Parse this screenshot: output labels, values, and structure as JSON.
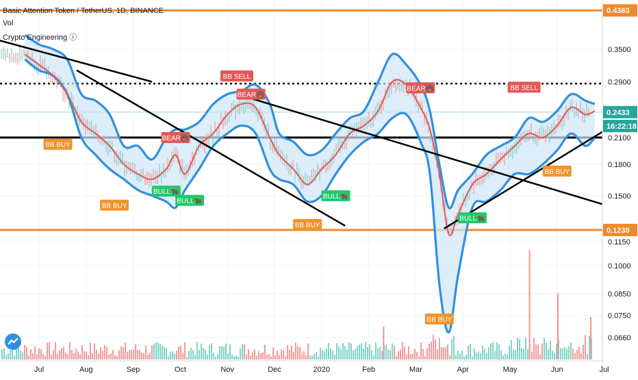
{
  "header": {
    "symbol_line": "Basic Attention Token / TetherUS, 1D, BINANCE",
    "volume_label": "Vol",
    "indicator_label": "Crypto Engineering ⓘ"
  },
  "colors": {
    "background": "#ffffff",
    "band_line": "#2f8fe0",
    "band_fill": "#cfe6f7",
    "mid_line": "#e05a5a",
    "level_orange": "#f0892b",
    "level_black": "#000000",
    "current_price": "#26a69a",
    "sell_badge": "#e35757",
    "buy_badge": "#f0932b",
    "bull_badge": "#22c96b",
    "vol_up": "#7fd3c8",
    "vol_down": "#f29a9a"
  },
  "price_axis": {
    "scale": "log",
    "ticks": [
      "0.3500",
      "0.2900",
      "0.2100",
      "0.1800",
      "0.1500",
      "0.1150",
      "0.1000",
      "0.0850",
      "0.0750",
      "0.0660"
    ],
    "tick_values": [
      0.35,
      0.29,
      0.21,
      0.18,
      0.15,
      0.115,
      0.1,
      0.085,
      0.075,
      0.066
    ],
    "tags": [
      {
        "label": "0.4383",
        "value": 0.4383,
        "color": "#f0892b"
      },
      {
        "label": "0.2433",
        "value": 0.2433,
        "color": "#26a69a"
      },
      {
        "label": "16:22:18",
        "value": 0.2245,
        "color": "#26a69a"
      },
      {
        "label": "0.1230",
        "value": 0.123,
        "color": "#f0892b"
      }
    ]
  },
  "time_axis": {
    "labels": [
      "Jul",
      "Aug",
      "Sep",
      "Oct",
      "Nov",
      "Dec",
      "2020",
      "Feb",
      "Mar",
      "Apr",
      "May",
      "Jun",
      "Jul"
    ],
    "months": [
      0,
      1,
      2,
      3,
      4,
      5,
      6,
      7,
      8,
      9,
      10,
      11,
      12
    ]
  },
  "chart_data": {
    "type": "line",
    "title": "Basic Attention Token / TetherUS, 1D, BINANCE",
    "x_unit": "month index (0 = Jul 2019)",
    "y_scale": "log",
    "ylim": [
      0.062,
      0.44
    ],
    "series": [
      {
        "name": "Price",
        "x": [
          -0.3,
          0.0,
          0.3,
          0.6,
          0.9,
          1.2,
          1.5,
          1.8,
          2.1,
          2.4,
          2.7,
          2.9,
          3.1,
          3.4,
          3.7,
          4.0,
          4.3,
          4.6,
          4.9,
          5.1,
          5.4,
          5.7,
          6.0,
          6.3,
          6.6,
          6.9,
          7.2,
          7.5,
          7.8,
          8.1,
          8.3,
          8.5,
          8.7,
          8.9,
          9.2,
          9.5,
          9.8,
          10.1,
          10.4,
          10.7,
          11.0,
          11.3,
          11.6,
          11.8
        ],
        "values": [
          0.34,
          0.32,
          0.3,
          0.27,
          0.23,
          0.215,
          0.2,
          0.18,
          0.17,
          0.165,
          0.175,
          0.19,
          0.17,
          0.2,
          0.215,
          0.24,
          0.255,
          0.25,
          0.21,
          0.19,
          0.175,
          0.16,
          0.175,
          0.19,
          0.215,
          0.225,
          0.245,
          0.29,
          0.285,
          0.25,
          0.22,
          0.17,
          0.12,
          0.135,
          0.16,
          0.17,
          0.185,
          0.2,
          0.215,
          0.21,
          0.225,
          0.25,
          0.24,
          0.245
        ]
      },
      {
        "name": "Upper Band",
        "x": [
          -0.3,
          0.0,
          0.3,
          0.6,
          0.9,
          1.2,
          1.5,
          1.8,
          2.1,
          2.4,
          2.7,
          2.9,
          3.1,
          3.4,
          3.7,
          4.0,
          4.3,
          4.6,
          4.9,
          5.1,
          5.4,
          5.7,
          6.0,
          6.3,
          6.6,
          6.9,
          7.2,
          7.5,
          7.8,
          8.1,
          8.3,
          8.5,
          8.7,
          8.9,
          9.2,
          9.5,
          9.8,
          10.1,
          10.4,
          10.7,
          11.0,
          11.3,
          11.6,
          11.8
        ],
        "values": [
          0.38,
          0.36,
          0.35,
          0.33,
          0.27,
          0.26,
          0.24,
          0.2,
          0.2,
          0.185,
          0.21,
          0.22,
          0.22,
          0.23,
          0.255,
          0.27,
          0.275,
          0.285,
          0.255,
          0.215,
          0.205,
          0.19,
          0.195,
          0.215,
          0.235,
          0.245,
          0.29,
          0.34,
          0.32,
          0.285,
          0.245,
          0.18,
          0.14,
          0.155,
          0.17,
          0.19,
          0.2,
          0.21,
          0.235,
          0.23,
          0.245,
          0.27,
          0.26,
          0.255
        ]
      },
      {
        "name": "Lower Band",
        "x": [
          -0.3,
          0.0,
          0.3,
          0.6,
          0.9,
          1.2,
          1.5,
          1.8,
          2.1,
          2.4,
          2.7,
          2.9,
          3.1,
          3.4,
          3.7,
          4.0,
          4.3,
          4.6,
          4.9,
          5.1,
          5.4,
          5.7,
          6.0,
          6.3,
          6.6,
          6.9,
          7.2,
          7.5,
          7.8,
          8.1,
          8.3,
          8.5,
          8.7,
          8.9,
          9.2,
          9.5,
          9.8,
          10.1,
          10.4,
          10.7,
          11.0,
          11.3,
          11.6,
          11.8
        ],
        "values": [
          0.33,
          0.31,
          0.3,
          0.27,
          0.21,
          0.19,
          0.175,
          0.165,
          0.155,
          0.15,
          0.145,
          0.14,
          0.155,
          0.175,
          0.2,
          0.215,
          0.225,
          0.215,
          0.175,
          0.165,
          0.16,
          0.145,
          0.15,
          0.17,
          0.19,
          0.205,
          0.215,
          0.235,
          0.24,
          0.205,
          0.17,
          0.09,
          0.068,
          0.095,
          0.14,
          0.145,
          0.155,
          0.17,
          0.17,
          0.18,
          0.195,
          0.215,
          0.2,
          0.21
        ]
      }
    ],
    "levels": [
      {
        "value": 0.4383,
        "label": "0.4383",
        "color": "#f0892b",
        "style": "solid"
      },
      {
        "value": 0.287,
        "color": "#000000",
        "style": "dotted"
      },
      {
        "value": 0.21,
        "color": "#000000",
        "style": "solid"
      },
      {
        "value": 0.123,
        "label": "0.1230",
        "color": "#f0892b",
        "style": "solid"
      }
    ],
    "trendlines": [
      {
        "x": [
          -0.9,
          2.4
        ],
        "y": [
          0.37,
          0.29
        ],
        "color": "#000000"
      },
      {
        "x": [
          0.8,
          6.5
        ],
        "y": [
          0.31,
          0.126
        ],
        "color": "#000000"
      },
      {
        "x": [
          4.2,
          13.3
        ],
        "y": [
          0.27,
          0.128
        ],
        "color": "#000000"
      },
      {
        "x": [
          8.6,
          13.0
        ],
        "y": [
          0.124,
          0.258
        ],
        "color": "#000000"
      }
    ],
    "signals": [
      {
        "label": "BB SELL",
        "x": 4.2,
        "y": 0.3,
        "kind": "sell"
      },
      {
        "label": "BB SELL",
        "x": 10.3,
        "y": 0.281,
        "kind": "sell"
      },
      {
        "label": "BEAR🐻",
        "x": 2.9,
        "y": 0.21,
        "kind": "sell"
      },
      {
        "label": "BEAR🐻",
        "x": 4.5,
        "y": 0.27,
        "kind": "sell"
      },
      {
        "label": "BEAR🐻",
        "x": 8.1,
        "y": 0.28,
        "kind": "sell"
      },
      {
        "label": "BB BUY",
        "x": 0.4,
        "y": 0.202,
        "kind": "buy"
      },
      {
        "label": "BB BUY",
        "x": 1.6,
        "y": 0.142,
        "kind": "buy"
      },
      {
        "label": "BB BUY",
        "x": 5.7,
        "y": 0.127,
        "kind": "buy"
      },
      {
        "label": "BB BUY",
        "x": 8.5,
        "y": 0.0735,
        "kind": "buy"
      },
      {
        "label": "BB BUY",
        "x": 11.0,
        "y": 0.173,
        "kind": "buy"
      },
      {
        "label": "BULL🐂",
        "x": 2.7,
        "y": 0.154,
        "kind": "bull"
      },
      {
        "label": "BULL🐂",
        "x": 3.2,
        "y": 0.146,
        "kind": "bull"
      },
      {
        "label": "BULL🐂",
        "x": 6.3,
        "y": 0.15,
        "kind": "bull"
      },
      {
        "label": "BULL🐂",
        "x": 9.2,
        "y": 0.132,
        "kind": "bull"
      }
    ],
    "volume_spikes": [
      {
        "x": 10.4,
        "value": 1.0
      },
      {
        "x": 11.0,
        "value": 0.55
      },
      {
        "x": 7.3,
        "value": 0.2
      },
      {
        "x": 11.7,
        "value": 0.3
      }
    ]
  }
}
